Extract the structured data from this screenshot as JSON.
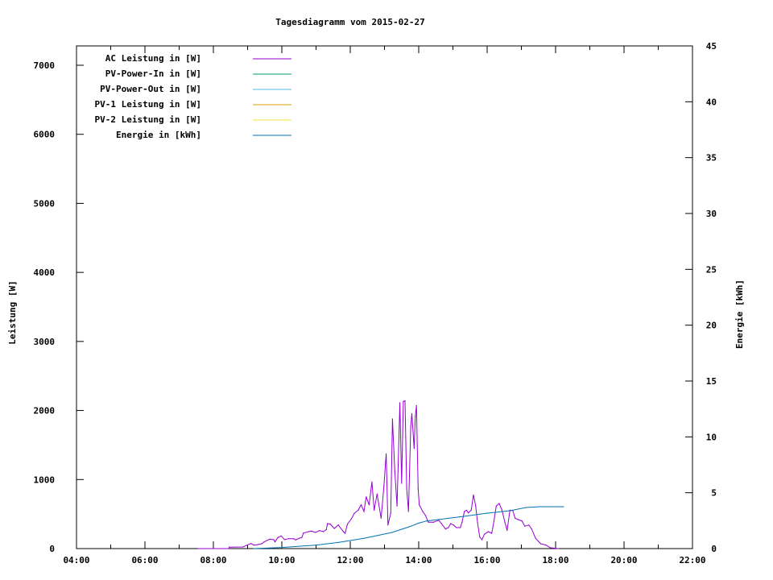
{
  "chart_data": {
    "type": "line",
    "title": "Tagesdiagramm vom 2015-02-27",
    "xlabel": "",
    "ylabel": "Leistung [W]",
    "y2label": "Energie [kWh]",
    "xlim": [
      "04:00",
      "22:00"
    ],
    "ylim": [
      0,
      7280
    ],
    "y2lim": [
      0,
      45
    ],
    "x_ticks": [
      "04:00",
      "06:00",
      "08:00",
      "10:00",
      "12:00",
      "14:00",
      "16:00",
      "18:00",
      "20:00",
      "22:00"
    ],
    "y_ticks": [
      0,
      1000,
      2000,
      3000,
      4000,
      5000,
      6000,
      7000
    ],
    "y2_ticks": [
      0,
      5,
      10,
      15,
      20,
      25,
      30,
      35,
      40,
      45
    ],
    "grid": false,
    "legend_position": "top-left",
    "legend": [
      {
        "name": "AC Leistung in [W]",
        "color": "#9400d3"
      },
      {
        "name": "PV-Power-In in [W]",
        "color": "#009e73"
      },
      {
        "name": "PV-Power-Out in [W]",
        "color": "#56b4e9"
      },
      {
        "name": "PV-1 Leistung in [W]",
        "color": "#e69f00"
      },
      {
        "name": "PV-2 Leistung in [W]",
        "color": "#f0e442"
      },
      {
        "name": "Energie in [kWh]",
        "color": "#0072b2"
      }
    ],
    "series": [
      {
        "name": "AC Leistung in [W]",
        "axis": "y",
        "color": "#9400d3",
        "x": [
          "07:33",
          "08:27",
          "08:28",
          "08:52",
          "08:59",
          "09:06",
          "09:11",
          "09:18",
          "09:25",
          "09:29",
          "09:39",
          "09:46",
          "09:48",
          "09:53",
          "09:59",
          "10:05",
          "10:12",
          "10:21",
          "10:24",
          "10:31",
          "10:35",
          "10:38",
          "10:47",
          "10:52",
          "10:59",
          "11:06",
          "11:13",
          "11:18",
          "11:20",
          "11:25",
          "11:32",
          "11:39",
          "11:48",
          "11:51",
          "11:55",
          "12:02",
          "12:07",
          "12:14",
          "12:19",
          "12:24",
          "12:28",
          "12:33",
          "12:38",
          "12:42",
          "12:47",
          "12:54",
          "12:59",
          "13:03",
          "13:06",
          "13:11",
          "13:14",
          "13:18",
          "13:22",
          "13:27",
          "13:30",
          "13:33",
          "13:36",
          "13:39",
          "13:42",
          "13:46",
          "13:48",
          "13:52",
          "13:54",
          "13:56",
          "13:59",
          "14:01",
          "14:07",
          "14:12",
          "14:17",
          "14:26",
          "14:35",
          "14:40",
          "14:47",
          "14:52",
          "14:56",
          "15:01",
          "15:06",
          "15:13",
          "15:16",
          "15:20",
          "15:24",
          "15:27",
          "15:32",
          "15:36",
          "15:40",
          "15:43",
          "15:47",
          "15:51",
          "15:55",
          "16:02",
          "16:08",
          "16:12",
          "16:16",
          "16:21",
          "16:26",
          "16:31",
          "16:35",
          "16:40",
          "16:45",
          "16:49",
          "16:54",
          "17:01",
          "17:06",
          "17:13",
          "17:18",
          "17:25",
          "17:34",
          "17:43",
          "17:51",
          "18:05"
        ],
        "y": [
          0,
          0,
          20,
          23,
          50,
          74,
          50,
          58,
          70,
          97,
          136,
          128,
          97,
          160,
          183,
          128,
          144,
          144,
          125,
          152,
          160,
          225,
          245,
          253,
          233,
          260,
          245,
          276,
          362,
          354,
          292,
          342,
          245,
          222,
          354,
          432,
          510,
          556,
          634,
          537,
          750,
          634,
          965,
          556,
          790,
          440,
          906,
          1373,
          342,
          517,
          1878,
          1120,
          615,
          2112,
          945,
          2131,
          2140,
          867,
          537,
          1762,
          1956,
          1450,
          1917,
          2073,
          867,
          634,
          537,
          478,
          381,
          381,
          412,
          362,
          284,
          303,
          362,
          342,
          303,
          303,
          381,
          537,
          556,
          517,
          556,
          778,
          615,
          381,
          167,
          128,
          206,
          245,
          222,
          401,
          615,
          653,
          556,
          381,
          264,
          556,
          549,
          440,
          420,
          401,
          323,
          342,
          284,
          148,
          70,
          51,
          12,
          0
        ]
      },
      {
        "name": "Energie in [kWh]",
        "axis": "y2",
        "color": "#0072b2",
        "x": [
          "09:11",
          "10:00",
          "10:59",
          "11:39",
          "12:24",
          "13:13",
          "13:46",
          "14:00",
          "14:14",
          "15:11",
          "15:58",
          "16:40",
          "17:08",
          "17:32",
          "18:14"
        ],
        "y": [
          0,
          0.1,
          0.31,
          0.55,
          0.92,
          1.44,
          2.0,
          2.28,
          2.47,
          2.83,
          3.15,
          3.39,
          3.68,
          3.75,
          3.75
        ]
      }
    ]
  }
}
